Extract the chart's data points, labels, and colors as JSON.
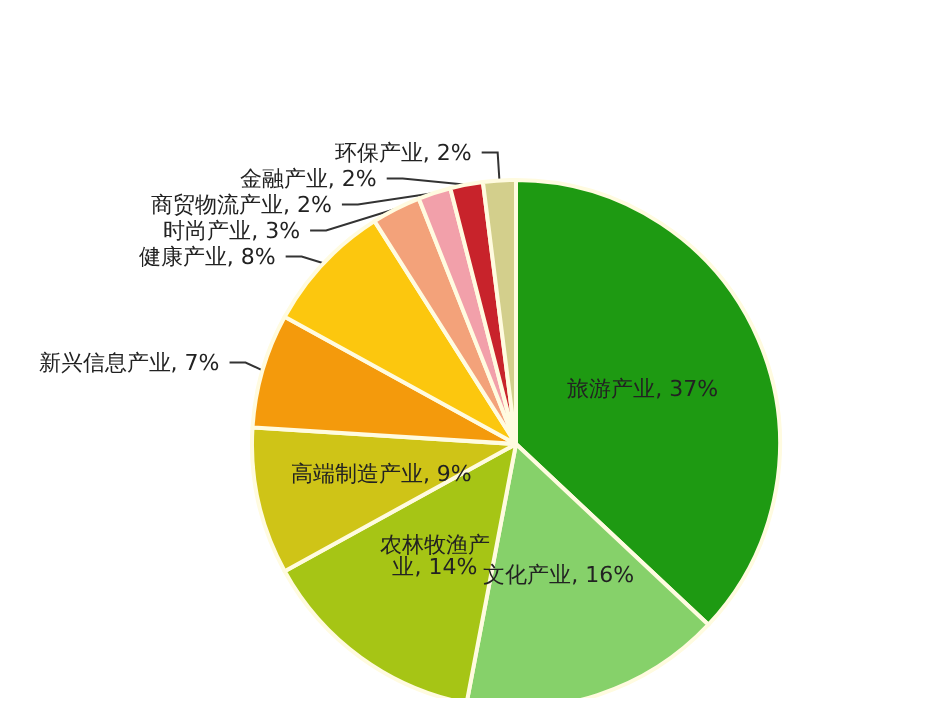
{
  "chart_data": {
    "type": "pie",
    "categories": [
      "旅游产业",
      "文化产业",
      "农林牧渔产业",
      "高端制造产业",
      "新兴信息产业",
      "健康产业",
      "时尚产业",
      "商贸物流产业",
      "金融产业",
      "环保产业"
    ],
    "values": [
      37,
      16,
      14,
      9,
      7,
      8,
      3,
      2,
      2,
      2
    ],
    "value_labels": [
      "37%",
      "16%",
      "14%",
      "9%",
      "7%",
      "8%",
      "3%",
      "2%",
      "2%",
      "2%"
    ],
    "colors": [
      "#1e9a12",
      "#86d16a",
      "#a6c515",
      "#cfc417",
      "#f49a0c",
      "#fcc70e",
      "#f3a27a",
      "#f2a0aa",
      "#c8232b",
      "#d3cf8c"
    ]
  }
}
